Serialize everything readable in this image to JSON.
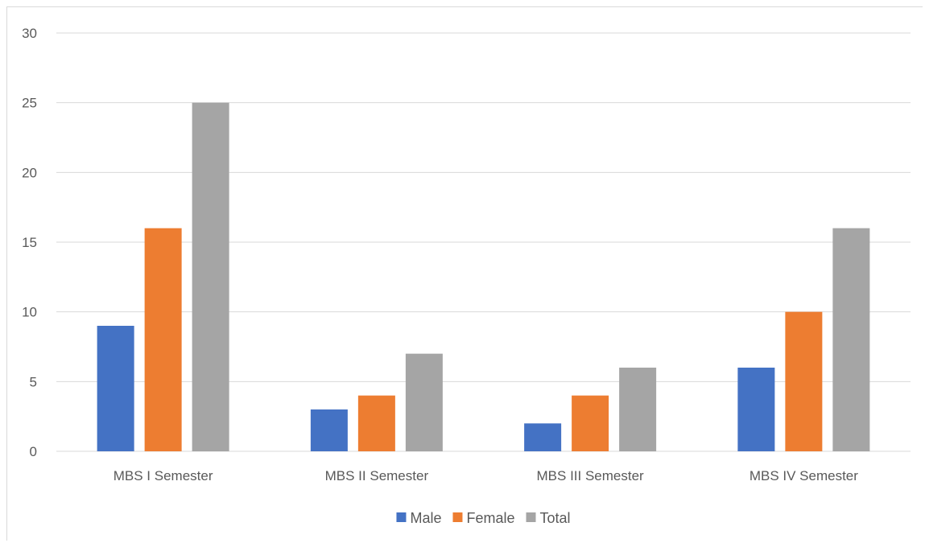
{
  "chart_data": {
    "type": "bar",
    "title": "",
    "xlabel": "",
    "ylabel": "",
    "categories": [
      "MBS I Semester",
      "MBS II Semester",
      "MBS III Semester",
      "MBS IV Semester"
    ],
    "series": [
      {
        "name": "Male",
        "color": "#4472c4",
        "values": [
          9,
          3,
          2,
          6
        ]
      },
      {
        "name": "Female",
        "color": "#ed7d31",
        "values": [
          16,
          4,
          4,
          10
        ]
      },
      {
        "name": "Total",
        "color": "#a5a5a5",
        "values": [
          25,
          7,
          6,
          16
        ]
      }
    ],
    "ylim": [
      0,
      30
    ],
    "yticks": [
      "0",
      "5",
      "10",
      "15",
      "20",
      "25",
      "30"
    ],
    "grid": true,
    "legend": "bottom"
  }
}
